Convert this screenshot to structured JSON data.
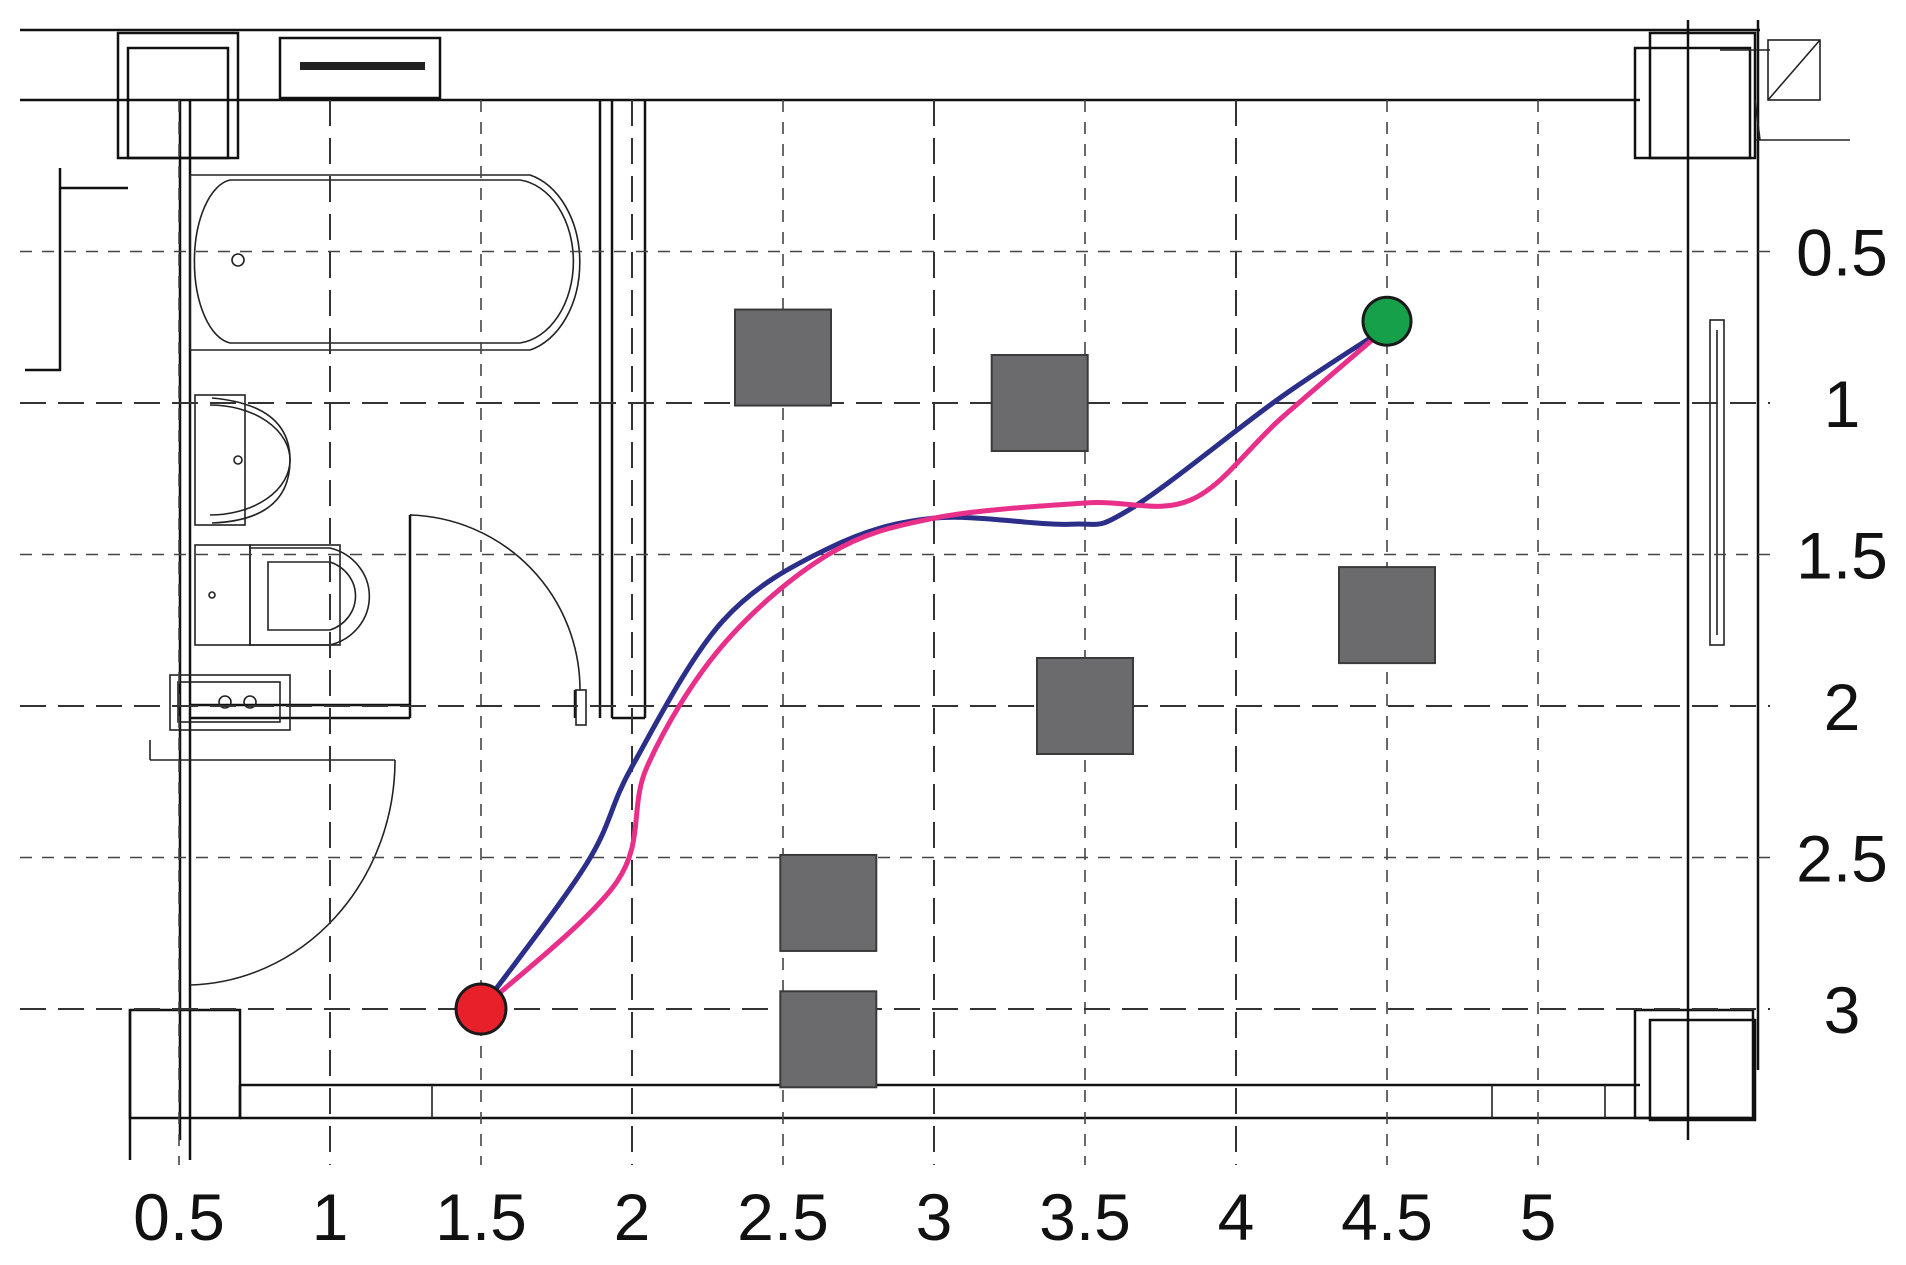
{
  "diagram": {
    "type": "floor-plan-path",
    "x_axis": {
      "ticks": [
        "0.5",
        "1",
        "1.5",
        "2",
        "2.5",
        "3",
        "3.5",
        "4",
        "4.5",
        "5"
      ]
    },
    "y_axis": {
      "ticks": [
        "0.5",
        "1",
        "1.5",
        "2",
        "2.5",
        "3"
      ]
    },
    "obstacles": [
      {
        "x": 2.5,
        "y": 0.85
      },
      {
        "x": 3.35,
        "y": 1.0
      },
      {
        "x": 4.5,
        "y": 1.7
      },
      {
        "x": 3.5,
        "y": 2.0
      },
      {
        "x": 2.65,
        "y": 2.65
      },
      {
        "x": 2.65,
        "y": 3.1
      }
    ],
    "start_point": {
      "x": 1.5,
      "y": 3.0,
      "color": "#e8202a"
    },
    "goal_point": {
      "x": 4.5,
      "y": 0.73,
      "color": "#16a04a"
    },
    "paths": [
      {
        "color": "#2b2f8a",
        "points": [
          [
            1.5,
            3.0
          ],
          [
            1.85,
            2.52
          ],
          [
            2.0,
            2.2
          ],
          [
            2.3,
            1.72
          ],
          [
            2.65,
            1.48
          ],
          [
            3.0,
            1.38
          ],
          [
            3.45,
            1.4
          ],
          [
            3.65,
            1.35
          ],
          [
            4.15,
            0.98
          ],
          [
            4.5,
            0.75
          ]
        ]
      },
      {
        "color": "#e8308a",
        "points": [
          [
            1.5,
            3.0
          ],
          [
            1.95,
            2.58
          ],
          [
            2.05,
            2.2
          ],
          [
            2.3,
            1.8
          ],
          [
            2.65,
            1.5
          ],
          [
            3.0,
            1.38
          ],
          [
            3.5,
            1.33
          ],
          [
            3.85,
            1.32
          ],
          [
            4.15,
            1.05
          ],
          [
            4.5,
            0.75
          ]
        ]
      }
    ]
  }
}
